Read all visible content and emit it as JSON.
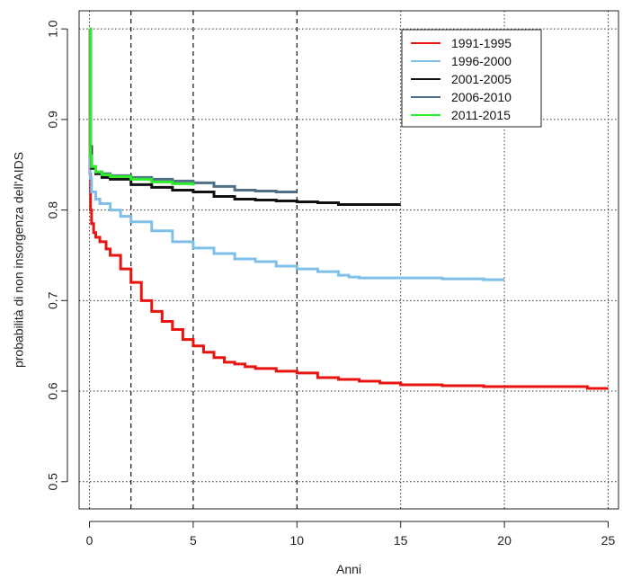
{
  "chart_data": {
    "type": "line",
    "title": "",
    "xlabel": "Anni",
    "ylabel": "probabilità di non insorgenza dell'AIDS",
    "xlim": [
      -0.5,
      25.5
    ],
    "ylim": [
      0.47,
      1.02
    ],
    "x_ticks": [
      0,
      5,
      10,
      15,
      20,
      25
    ],
    "y_ticks": [
      0.5,
      0.6,
      0.7,
      0.8,
      0.9,
      1.0
    ],
    "y_tick_labels": [
      "0.5",
      "0.6",
      "0.7",
      "0.8",
      "0.9",
      "1.0"
    ],
    "vertical_reference_lines": [
      2,
      5,
      10
    ],
    "grid": "dotted",
    "legend_position": "top-right",
    "series": [
      {
        "name": "1991-1995",
        "color": "#e8140f",
        "x": [
          0,
          0.02,
          0.05,
          0.1,
          0.2,
          0.3,
          0.5,
          0.8,
          1,
          1.5,
          2,
          2.5,
          3,
          3.5,
          4,
          4.5,
          5,
          5.5,
          6,
          6.5,
          7,
          7.5,
          8,
          9,
          10,
          11,
          12,
          13,
          14,
          15,
          17,
          19,
          21,
          23,
          24,
          25
        ],
        "y": [
          1.0,
          0.84,
          0.8,
          0.785,
          0.775,
          0.77,
          0.765,
          0.757,
          0.75,
          0.735,
          0.72,
          0.7,
          0.688,
          0.677,
          0.668,
          0.657,
          0.65,
          0.643,
          0.637,
          0.632,
          0.63,
          0.627,
          0.625,
          0.622,
          0.62,
          0.615,
          0.613,
          0.611,
          0.609,
          0.607,
          0.606,
          0.605,
          0.605,
          0.605,
          0.603,
          0.603
        ]
      },
      {
        "name": "1996-2000",
        "color": "#7fbfe8",
        "x": [
          0,
          0.03,
          0.1,
          0.3,
          0.5,
          1,
          1.5,
          2,
          3,
          4,
          5,
          6,
          7,
          8,
          9,
          10,
          11,
          12,
          12.5,
          13,
          15,
          17,
          19,
          20
        ],
        "y": [
          1.0,
          0.835,
          0.82,
          0.812,
          0.807,
          0.8,
          0.793,
          0.787,
          0.777,
          0.765,
          0.758,
          0.752,
          0.746,
          0.743,
          0.738,
          0.735,
          0.732,
          0.728,
          0.726,
          0.725,
          0.725,
          0.724,
          0.723,
          0.723
        ]
      },
      {
        "name": "2001-2005",
        "color": "#111111",
        "x": [
          0,
          0.05,
          0.1,
          0.3,
          0.6,
          1,
          2,
          3,
          4,
          5,
          6,
          7,
          8,
          9,
          10,
          11,
          12,
          13,
          14,
          15
        ],
        "y": [
          1.0,
          0.87,
          0.846,
          0.84,
          0.836,
          0.834,
          0.828,
          0.825,
          0.822,
          0.82,
          0.815,
          0.812,
          0.811,
          0.81,
          0.809,
          0.808,
          0.806,
          0.806,
          0.806,
          0.806
        ]
      },
      {
        "name": "2006-2010",
        "color": "#4f7086",
        "x": [
          0,
          0.05,
          0.1,
          0.3,
          0.6,
          1,
          2,
          3,
          4,
          5,
          6,
          7,
          8,
          9,
          10
        ],
        "y": [
          1.0,
          0.86,
          0.848,
          0.842,
          0.84,
          0.838,
          0.836,
          0.834,
          0.832,
          0.83,
          0.826,
          0.822,
          0.821,
          0.82,
          0.82
        ]
      },
      {
        "name": "2011-2015",
        "color": "#2cec2c",
        "x": [
          0,
          0.05,
          0.1,
          0.3,
          0.6,
          1,
          2,
          3,
          4,
          5
        ],
        "y": [
          1.0,
          0.86,
          0.848,
          0.842,
          0.839,
          0.837,
          0.834,
          0.831,
          0.829,
          0.827
        ]
      }
    ]
  }
}
